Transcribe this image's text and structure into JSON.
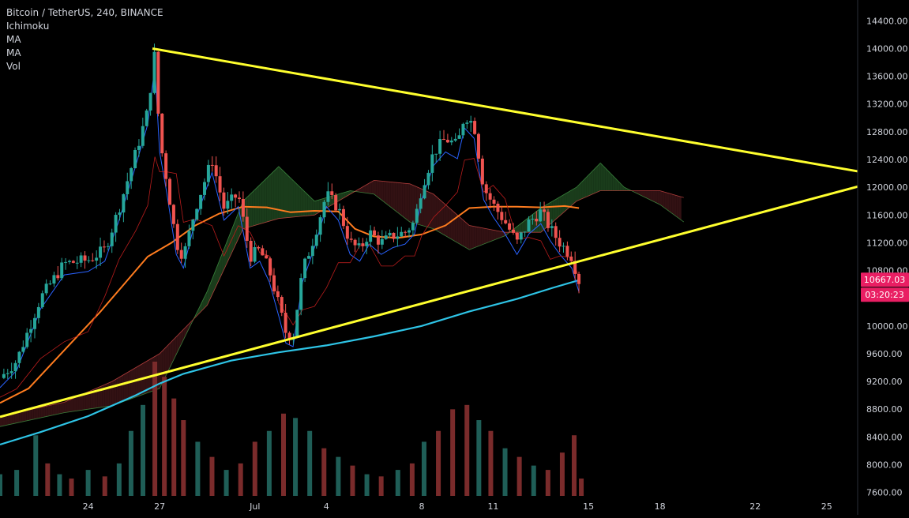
{
  "legend": {
    "symbol_line": "Bitcoin / TetherUS, 240, BINANCE",
    "indicators": [
      "Ichimoku",
      "MA",
      "MA",
      "Vol"
    ]
  },
  "colors": {
    "background": "#000000",
    "axis_text": "#d1d4dc",
    "up_candle": "#26a69a",
    "down_candle": "#ef5350",
    "trendline": "#ffff2e",
    "ma_fast": "#ff7c1f",
    "ma_slow": "#2ec4e6",
    "ichimoku_tenkan": "#2962ff",
    "ichimoku_kijun": "#b71c1c",
    "cloud_bull": "#1e4620",
    "cloud_bear": "#3b1416",
    "price_badge": "#e91e63"
  },
  "chart_data": {
    "type": "candlestick",
    "title": "Bitcoin / TetherUS, 240, BINANCE",
    "y_ticks": [
      "14400.00",
      "14000.00",
      "13600.00",
      "13200.00",
      "12800.00",
      "12400.00",
      "12000.00",
      "11600.00",
      "11200.00",
      "10800.00",
      "10400.00",
      "10000.00",
      "9600.00",
      "9200.00",
      "8800.00",
      "8400.00",
      "8000.00",
      "7600.00"
    ],
    "y_tick_values": [
      14400,
      14000,
      13600,
      13200,
      12800,
      12400,
      12000,
      11600,
      11200,
      10800,
      10400,
      10000,
      9600,
      9200,
      8800,
      8400,
      8000,
      7600
    ],
    "ylim": [
      7550,
      14700
    ],
    "x_ticks": [
      {
        "label": "24",
        "day": 24
      },
      {
        "label": "27",
        "day": 27
      },
      {
        "label": "Jul",
        "day": 31
      },
      {
        "label": "4",
        "day": 34
      },
      {
        "label": "8",
        "day": 38
      },
      {
        "label": "11",
        "day": 41
      },
      {
        "label": "15",
        "day": 45
      },
      {
        "label": "18",
        "day": 48
      },
      {
        "label": "22",
        "day": 52
      },
      {
        "label": "25",
        "day": 55
      }
    ],
    "x_axis_note": "day index counts from June 1 (Jul 1 = 31)",
    "xlim_days": [
      20.3,
      56.3
    ],
    "last_price": "10667.03",
    "last_price_value": 10667.03,
    "countdown": "03:20:23",
    "trendlines": [
      {
        "name": "upper",
        "from": {
          "day": 26.7,
          "price": 14000
        },
        "to": {
          "day": 56.3,
          "price": 12230
        }
      },
      {
        "name": "lower",
        "from": {
          "day": 20.3,
          "price": 8690
        },
        "to": {
          "day": 56.3,
          "price": 12010
        }
      }
    ],
    "price_path": [
      [
        20.3,
        9250
      ],
      [
        21,
        9500
      ],
      [
        22,
        10400
      ],
      [
        23,
        10900
      ],
      [
        24,
        10950
      ],
      [
        24.7,
        11100
      ],
      [
        25.3,
        11700
      ],
      [
        26,
        12500
      ],
      [
        26.5,
        13100
      ],
      [
        26.8,
        13950
      ],
      [
        27,
        12700
      ],
      [
        27.3,
        12100
      ],
      [
        27.7,
        11200
      ],
      [
        28,
        11000
      ],
      [
        28.5,
        11700
      ],
      [
        29.2,
        12400
      ],
      [
        29.7,
        11700
      ],
      [
        30.3,
        11900
      ],
      [
        30.8,
        11000
      ],
      [
        31.2,
        11100
      ],
      [
        31.6,
        10800
      ],
      [
        32,
        10300
      ],
      [
        32.3,
        9900
      ],
      [
        32.6,
        9850
      ],
      [
        33,
        10800
      ],
      [
        33.5,
        11300
      ],
      [
        34,
        11900
      ],
      [
        34.5,
        11700
      ],
      [
        35,
        11200
      ],
      [
        35.4,
        11100
      ],
      [
        35.8,
        11350
      ],
      [
        36.3,
        11200
      ],
      [
        36.8,
        11300
      ],
      [
        37.3,
        11350
      ],
      [
        37.7,
        11500
      ],
      [
        38,
        12000
      ],
      [
        38.5,
        12500
      ],
      [
        39,
        12700
      ],
      [
        39.5,
        12600
      ],
      [
        39.8,
        13050
      ],
      [
        40.2,
        12900
      ],
      [
        40.6,
        12000
      ],
      [
        41,
        11750
      ],
      [
        41.5,
        11500
      ],
      [
        42,
        11200
      ],
      [
        42.5,
        11500
      ],
      [
        43,
        11650
      ],
      [
        43.4,
        11400
      ],
      [
        43.8,
        11200
      ],
      [
        44.3,
        11000
      ],
      [
        44.6,
        10650
      ]
    ],
    "ma_fast": [
      [
        20.3,
        8890
      ],
      [
        21.5,
        9100
      ],
      [
        23,
        9650
      ],
      [
        24.5,
        10200
      ],
      [
        25.5,
        10600
      ],
      [
        26.5,
        11000
      ],
      [
        27.5,
        11200
      ],
      [
        28.5,
        11450
      ],
      [
        29.5,
        11620
      ],
      [
        30.5,
        11720
      ],
      [
        31.5,
        11710
      ],
      [
        32.5,
        11640
      ],
      [
        33.5,
        11660
      ],
      [
        34.5,
        11650
      ],
      [
        35.2,
        11400
      ],
      [
        36,
        11290
      ],
      [
        37,
        11270
      ],
      [
        38,
        11320
      ],
      [
        39,
        11450
      ],
      [
        40,
        11700
      ],
      [
        41,
        11720
      ],
      [
        42,
        11720
      ],
      [
        43,
        11710
      ],
      [
        44,
        11730
      ],
      [
        44.6,
        11700
      ]
    ],
    "ma_slow": [
      [
        20.3,
        8290
      ],
      [
        22,
        8470
      ],
      [
        24,
        8700
      ],
      [
        26,
        9000
      ],
      [
        27,
        9170
      ],
      [
        28,
        9310
      ],
      [
        30,
        9500
      ],
      [
        32,
        9620
      ],
      [
        34,
        9720
      ],
      [
        36,
        9850
      ],
      [
        38,
        10000
      ],
      [
        40,
        10210
      ],
      [
        42,
        10390
      ],
      [
        43.5,
        10550
      ],
      [
        44.6,
        10660
      ]
    ],
    "ichimoku_span_a": [
      [
        20.3,
        8550
      ],
      [
        23,
        8750
      ],
      [
        25,
        8850
      ],
      [
        27,
        9100
      ],
      [
        29,
        10500
      ],
      [
        30.5,
        11800
      ],
      [
        32,
        12300
      ],
      [
        33.5,
        11800
      ],
      [
        35,
        11950
      ],
      [
        36,
        11900
      ],
      [
        37.5,
        11500
      ],
      [
        38.5,
        11400
      ],
      [
        40,
        11100
      ],
      [
        41.5,
        11300
      ],
      [
        43,
        11700
      ],
      [
        44.5,
        12000
      ],
      [
        45.5,
        12350
      ],
      [
        46.5,
        12000
      ],
      [
        48,
        11750
      ],
      [
        49,
        11500
      ]
    ],
    "ichimoku_span_b": [
      [
        20.3,
        8700
      ],
      [
        23,
        8900
      ],
      [
        25,
        9200
      ],
      [
        27,
        9600
      ],
      [
        29,
        10300
      ],
      [
        30.5,
        11400
      ],
      [
        32,
        11550
      ],
      [
        33.5,
        11600
      ],
      [
        35,
        11900
      ],
      [
        36,
        12100
      ],
      [
        37.5,
        12050
      ],
      [
        38.5,
        11900
      ],
      [
        40,
        11450
      ],
      [
        41.5,
        11350
      ],
      [
        43,
        11350
      ],
      [
        44.5,
        11800
      ],
      [
        45.5,
        11950
      ],
      [
        46.5,
        11950
      ],
      [
        48,
        11950
      ],
      [
        49,
        11850
      ]
    ],
    "volume": [
      {
        "day": 20.3,
        "v": 0.1,
        "up": true
      },
      {
        "day": 21,
        "v": 0.12,
        "up": true
      },
      {
        "day": 21.8,
        "v": 0.28,
        "up": true
      },
      {
        "day": 22.3,
        "v": 0.15,
        "up": false
      },
      {
        "day": 22.8,
        "v": 0.1,
        "up": true
      },
      {
        "day": 23.3,
        "v": 0.08,
        "up": false
      },
      {
        "day": 24,
        "v": 0.12,
        "up": true
      },
      {
        "day": 24.7,
        "v": 0.09,
        "up": false
      },
      {
        "day": 25.3,
        "v": 0.15,
        "up": true
      },
      {
        "day": 25.8,
        "v": 0.3,
        "up": true
      },
      {
        "day": 26.3,
        "v": 0.42,
        "up": true
      },
      {
        "day": 26.8,
        "v": 0.62,
        "up": false
      },
      {
        "day": 27.2,
        "v": 0.55,
        "up": false
      },
      {
        "day": 27.6,
        "v": 0.45,
        "up": false
      },
      {
        "day": 28,
        "v": 0.35,
        "up": false
      },
      {
        "day": 28.6,
        "v": 0.25,
        "up": true
      },
      {
        "day": 29.2,
        "v": 0.18,
        "up": false
      },
      {
        "day": 29.8,
        "v": 0.12,
        "up": true
      },
      {
        "day": 30.4,
        "v": 0.15,
        "up": false
      },
      {
        "day": 31,
        "v": 0.25,
        "up": false
      },
      {
        "day": 31.6,
        "v": 0.3,
        "up": true
      },
      {
        "day": 32.2,
        "v": 0.38,
        "up": false
      },
      {
        "day": 32.7,
        "v": 0.36,
        "up": true
      },
      {
        "day": 33.3,
        "v": 0.3,
        "up": true
      },
      {
        "day": 33.9,
        "v": 0.22,
        "up": false
      },
      {
        "day": 34.5,
        "v": 0.18,
        "up": true
      },
      {
        "day": 35.1,
        "v": 0.14,
        "up": false
      },
      {
        "day": 35.7,
        "v": 0.1,
        "up": true
      },
      {
        "day": 36.3,
        "v": 0.09,
        "up": false
      },
      {
        "day": 37,
        "v": 0.12,
        "up": true
      },
      {
        "day": 37.6,
        "v": 0.15,
        "up": false
      },
      {
        "day": 38.1,
        "v": 0.25,
        "up": true
      },
      {
        "day": 38.7,
        "v": 0.3,
        "up": false
      },
      {
        "day": 39.3,
        "v": 0.4,
        "up": false
      },
      {
        "day": 39.9,
        "v": 0.42,
        "up": false
      },
      {
        "day": 40.4,
        "v": 0.35,
        "up": true
      },
      {
        "day": 40.9,
        "v": 0.3,
        "up": false
      },
      {
        "day": 41.5,
        "v": 0.22,
        "up": true
      },
      {
        "day": 42.1,
        "v": 0.18,
        "up": false
      },
      {
        "day": 42.7,
        "v": 0.14,
        "up": true
      },
      {
        "day": 43.3,
        "v": 0.12,
        "up": false
      },
      {
        "day": 43.9,
        "v": 0.2,
        "up": false
      },
      {
        "day": 44.4,
        "v": 0.28,
        "up": false
      },
      {
        "day": 44.7,
        "v": 0.08,
        "up": false
      }
    ]
  }
}
